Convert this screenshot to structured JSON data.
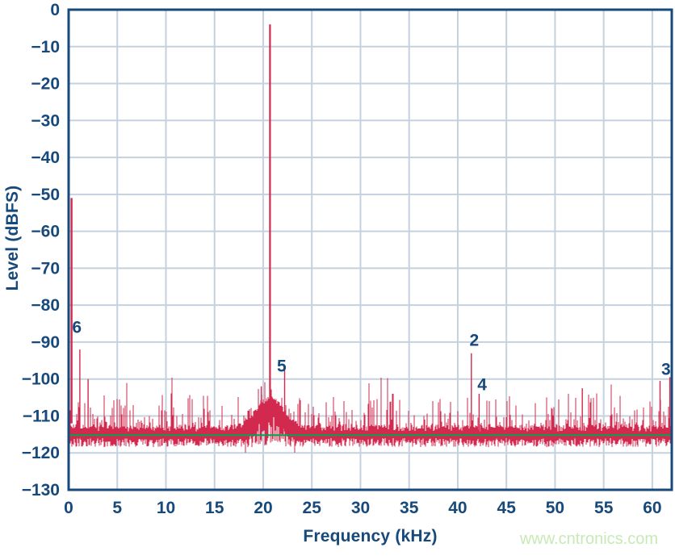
{
  "page": {
    "background": "#ffffff"
  },
  "watermark": {
    "text": "www.cntronics.com",
    "color": "#C8E9B5"
  },
  "chart_data": {
    "type": "line",
    "title": "",
    "xlabel": "Frequency (kHz)",
    "ylabel": "Level (dBFS)",
    "xlim": [
      0,
      62
    ],
    "ylim": [
      -130,
      0
    ],
    "grid": true,
    "legend": "none",
    "x_ticks": [
      0,
      5,
      10,
      15,
      20,
      25,
      30,
      35,
      40,
      45,
      50,
      55,
      60
    ],
    "x_tick_labels": [
      "0",
      "5",
      "10",
      "15",
      "20",
      "25",
      "30",
      "35",
      "40",
      "45",
      "50",
      "55",
      "60"
    ],
    "y_ticks": [
      0,
      -10,
      -20,
      -30,
      -40,
      -50,
      -60,
      -70,
      -80,
      -90,
      -100,
      -110,
      -120,
      -130
    ],
    "y_tick_labels": [
      "0",
      "−10",
      "−20",
      "−30",
      "−40",
      "−50",
      "−60",
      "−70",
      "−80",
      "−90",
      "−100",
      "−110",
      "−120",
      "−130"
    ],
    "colors": {
      "axis": "#17497B",
      "grid": "#C5D1DE",
      "trace": "#D22A4F",
      "median_line": "#00A54F",
      "labels": "#17497B"
    },
    "series": [
      {
        "name": "fft-spectrum",
        "kind": "spectrum-trace",
        "color": "#D22A4F"
      },
      {
        "name": "median-noise-floor",
        "kind": "hline",
        "color": "#00A54F",
        "level_dbfs": -115.2
      }
    ],
    "fundamental": {
      "frequency_khz": 20.7,
      "level_dbfs": -4.0
    },
    "dc_spur": {
      "frequency_khz": 0.3,
      "level_dbfs": -51.0
    },
    "noise_floor": {
      "band_top_dbfs": -113.5,
      "band_bottom_dbfs": -118.0,
      "median_dbfs": -115.2,
      "skirt": {
        "center_khz": 20.7,
        "peak_dbfs": -105.3,
        "sigma_khz": 1.45
      }
    },
    "spurs": [
      {
        "frequency_khz": 1.15,
        "level_dbfs": -92.0
      },
      {
        "frequency_khz": 2.0,
        "level_dbfs": -100.0
      },
      {
        "frequency_khz": 19.8,
        "level_dbfs": -102.0
      },
      {
        "frequency_khz": 22.2,
        "level_dbfs": -97.5
      },
      {
        "frequency_khz": 41.4,
        "level_dbfs": -93.0
      },
      {
        "frequency_khz": 42.2,
        "level_dbfs": -104.0
      },
      {
        "frequency_khz": 52.8,
        "level_dbfs": -102.5
      },
      {
        "frequency_khz": 60.8,
        "level_dbfs": -100.5
      },
      {
        "frequency_khz": 61.8,
        "level_dbfs": -99.5
      }
    ],
    "harmonic_markers": [
      {
        "label": "2",
        "x_khz": 41.7,
        "y_dbfs": -89.5
      },
      {
        "label": "3",
        "x_khz": 61.4,
        "y_dbfs": -97.3
      },
      {
        "label": "4",
        "x_khz": 42.5,
        "y_dbfs": -101.5
      },
      {
        "label": "5",
        "x_khz": 21.9,
        "y_dbfs": -96.5
      },
      {
        "label": "6",
        "x_khz": 0.85,
        "y_dbfs": -86.0
      }
    ]
  }
}
